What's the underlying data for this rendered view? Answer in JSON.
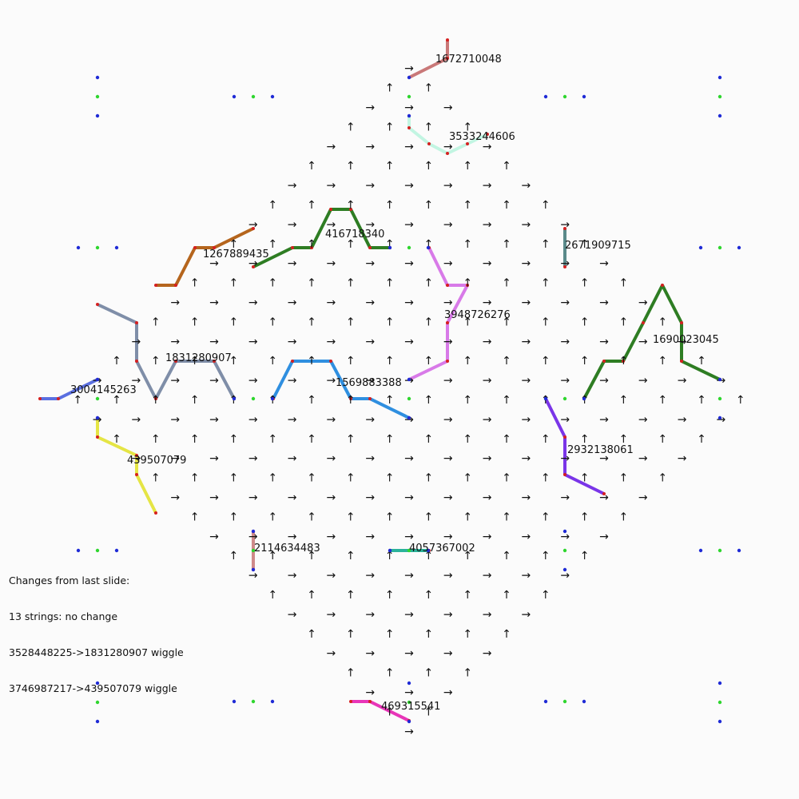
{
  "changes_panel": {
    "title": "Changes from last slide:",
    "lines": [
      "13 strings: no change",
      "3528448225->1831280907 wiggle",
      "3746987217->439507079 wiggle"
    ]
  },
  "colors": {
    "dot_blue": "#1f2bd6",
    "dot_green": "#2fd62f",
    "dot_red": "#d62020",
    "arrow": "#111111"
  },
  "arrow_glyphs": {
    "up": "↑",
    "down": "↓",
    "left": "←",
    "right": "→"
  },
  "strings": [
    {
      "id": "1672710048",
      "color": "#c97878"
    },
    {
      "id": "3533244606",
      "color": "#c2f5e2"
    },
    {
      "id": "416718340",
      "color": "#2e7d23"
    },
    {
      "id": "1267889435",
      "color": "#b5651d"
    },
    {
      "id": "2671909715",
      "color": "#5a8a8a"
    },
    {
      "id": "3948726276",
      "color": "#d87ae8"
    },
    {
      "id": "1831280907",
      "color": "#7f8ea8"
    },
    {
      "id": "1690023045",
      "color": "#2e7d23"
    },
    {
      "id": "3004145263",
      "color": "#5a6fe0"
    },
    {
      "id": "1569883388",
      "color": "#2f8fe0"
    },
    {
      "id": "2932138061",
      "color": "#7a35e8"
    },
    {
      "id": "439507079",
      "color": "#e5e545"
    },
    {
      "id": "2114634483",
      "color": "#cf8a8a"
    },
    {
      "id": "4057367002",
      "color": "#2bb39a"
    },
    {
      "id": "469315541",
      "color": "#e835b8"
    }
  ]
}
